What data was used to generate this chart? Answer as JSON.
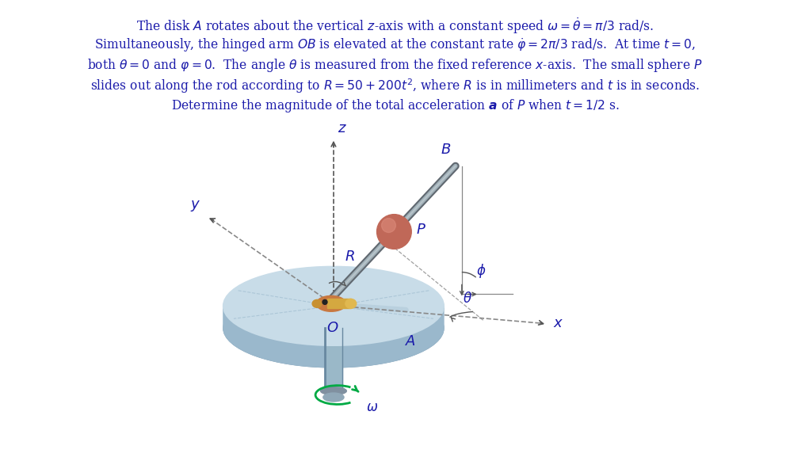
{
  "background_color": "#ffffff",
  "text_color": "#1a1aaa",
  "title_lines": [
    "The disk $A$ rotates about the vertical $z$-axis with a constant speed $\\omega = \\dot{\\theta} = \\pi/3$ rad/s.",
    "Simultaneously, the hinged arm $OB$ is elevated at the constant rate $\\dot{\\varphi} = 2\\pi/3$ rad/s.  At time $t = 0$,",
    "both $\\theta = 0$ and $\\varphi = 0$.  The angle $\\theta$ is measured from the fixed reference $x$-axis.  The small sphere $P$",
    "slides out along the rod according to $R = 50 + 200t^2$, where $R$ is in millimeters and $t$ is in seconds.",
    "Determine the magnitude of the total acceleration $\\boldsymbol{a}$ of $P$ when $t = 1/2$ s."
  ],
  "fig_width": 9.97,
  "fig_height": 5.82,
  "text_fontsize": 11.2,
  "disk_color": "#c8dce8",
  "disk_edge_color": "#8ab0c8",
  "disk_rim_color": "#9ab8cc",
  "disk_bottom_color": "#7898b0",
  "shaft_color": "#9ab8c8",
  "shaft_dark": "#6888a0",
  "hinge_color": "#c87840",
  "hinge_gold": "#d4a840",
  "rod_color_dark": "#888898",
  "rod_color_light": "#b0b8c0",
  "sphere_color": "#c06858",
  "sphere_highlight": "#d88878",
  "axis_color": "#555555",
  "label_color": "#1a1aaa",
  "omega_color": "#00aa44",
  "dashed_color": "#888888"
}
